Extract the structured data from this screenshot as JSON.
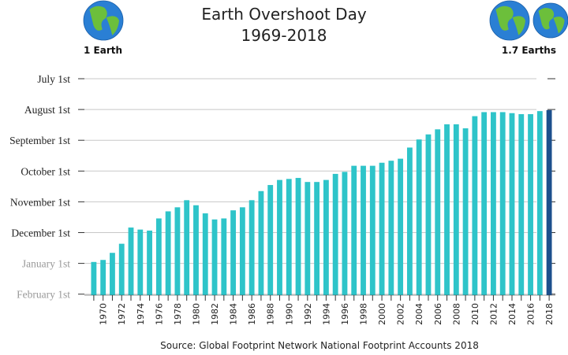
{
  "header": {
    "title_line1": "Earth Overshoot Day",
    "title_line2": "1969-2018",
    "left_label": "1 Earth",
    "right_label": "1.7 Earths",
    "left_icon": "globe-icon",
    "right_icon": "globe-icon"
  },
  "source": "Source: Global Footprint Network National Footprint Accounts 2018",
  "colors": {
    "bar": "#2ec4c9",
    "bar_highlight": "#1c4f8c",
    "grid": "#c8c8c8",
    "axis": "#333333",
    "tick_label": "#222222",
    "tick_label_muted": "#999999",
    "ocean": "#2a7fd4",
    "land": "#6cbf3b"
  },
  "chart_data": {
    "type": "bar",
    "title": "Earth Overshoot Day 1969-2018",
    "xlabel": "",
    "ylabel": "",
    "y_axis": {
      "inverted": true,
      "range_labels": [
        "July 1st",
        "February 1st"
      ],
      "ticks": [
        {
          "label": "July 1st",
          "value": "Jul 1",
          "muted": false
        },
        {
          "label": "August 1st",
          "value": "Aug 1",
          "muted": false
        },
        {
          "label": "September 1st",
          "value": "Sep 1",
          "muted": false
        },
        {
          "label": "October 1st",
          "value": "Oct 1",
          "muted": false
        },
        {
          "label": "November 1st",
          "value": "Nov 1",
          "muted": false
        },
        {
          "label": "December 1st",
          "value": "Dec 1",
          "muted": false
        },
        {
          "label": "January 1st",
          "value": "Jan 1 (following year)",
          "muted": true
        },
        {
          "label": "February 1st",
          "value": "Feb 1 (following year)",
          "muted": true
        }
      ]
    },
    "x_tick_labels": [
      "1970",
      "1972",
      "1974",
      "1976",
      "1978",
      "1980",
      "1982",
      "1984",
      "1986",
      "1988",
      "1990",
      "1992",
      "1994",
      "1996",
      "1998",
      "2000",
      "2002",
      "2004",
      "2006",
      "2008",
      "2010",
      "2012",
      "2014",
      "2016",
      "2018"
    ],
    "grid": true,
    "categories": [
      1969,
      1970,
      1971,
      1972,
      1973,
      1974,
      1975,
      1976,
      1977,
      1978,
      1979,
      1980,
      1981,
      1982,
      1983,
      1984,
      1985,
      1986,
      1987,
      1988,
      1989,
      1990,
      1991,
      1992,
      1993,
      1994,
      1995,
      1996,
      1997,
      1998,
      1999,
      2000,
      2001,
      2002,
      2003,
      2004,
      2005,
      2006,
      2007,
      2008,
      2009,
      2010,
      2011,
      2012,
      2013,
      2014,
      2015,
      2016,
      2017,
      2018
    ],
    "values": [
      "Dec 29",
      "Dec 27",
      "Dec 20",
      "Dec 11",
      "Nov 25",
      "Nov 27",
      "Nov 28",
      "Nov 16",
      "Nov 9",
      "Nov 5",
      "Oct 29",
      "Nov 3",
      "Nov 11",
      "Nov 17",
      "Nov 16",
      "Nov 8",
      "Nov 5",
      "Oct 29",
      "Oct 20",
      "Oct 14",
      "Oct 9",
      "Oct 8",
      "Oct 7",
      "Oct 11",
      "Oct 11",
      "Oct 9",
      "Oct 3",
      "Oct 1",
      "Sep 25",
      "Sep 25",
      "Sep 25",
      "Sep 22",
      "Sep 20",
      "Sep 18",
      "Sep 7",
      "Aug 30",
      "Aug 25",
      "Aug 20",
      "Aug 15",
      "Aug 15",
      "Aug 19",
      "Aug 7",
      "Aug 3",
      "Aug 3",
      "Aug 3",
      "Aug 4",
      "Aug 5",
      "Aug 5",
      "Aug 2",
      "Aug 1"
    ],
    "highlight": 2018
  }
}
